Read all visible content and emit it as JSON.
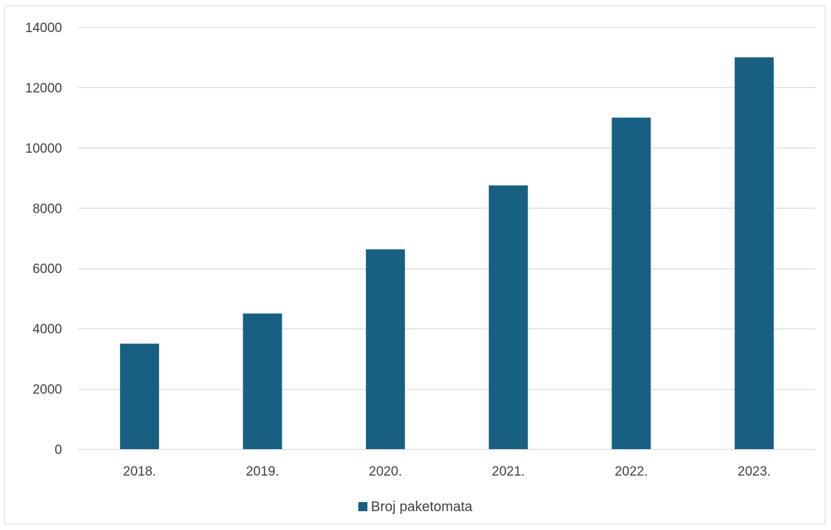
{
  "chart_data": {
    "type": "bar",
    "categories": [
      "2018.",
      "2019.",
      "2020.",
      "2021.",
      "2022.",
      "2023."
    ],
    "series": [
      {
        "name": "Broj paketomata",
        "values": [
          3500,
          4500,
          6630,
          8750,
          11000,
          13000
        ],
        "color": "#176083"
      }
    ],
    "title": "",
    "xlabel": "",
    "ylabel": "",
    "ylim": [
      0,
      14000
    ],
    "yticks": [
      0,
      2000,
      4000,
      6000,
      8000,
      10000,
      12000,
      14000
    ],
    "grid": true,
    "gridColor": "#d9d9d9",
    "legend": {
      "position": "bottom",
      "labels": [
        "Broj paketomata"
      ]
    }
  }
}
